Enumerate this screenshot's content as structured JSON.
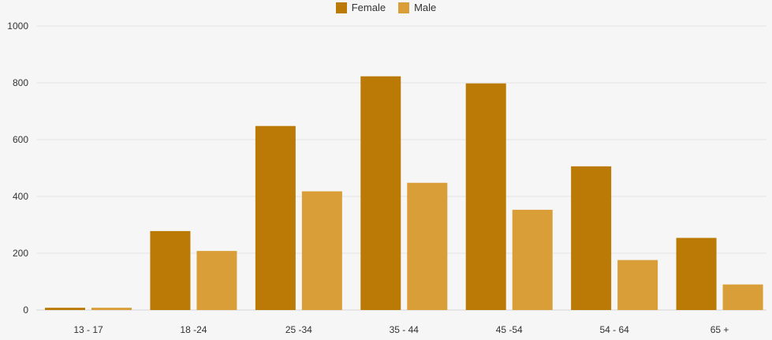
{
  "chart_data": {
    "type": "bar",
    "categories": [
      "13 - 17",
      "18 -24",
      "25 -34",
      "35 - 44",
      "45 -54",
      "54 - 64",
      "65 +"
    ],
    "series": [
      {
        "name": "Female",
        "color": "#bb7a06",
        "values": [
          8,
          278,
          648,
          823,
          798,
          506,
          254
        ]
      },
      {
        "name": "Male",
        "color": "#d99e37",
        "values": [
          8,
          208,
          418,
          448,
          353,
          176,
          90
        ]
      }
    ],
    "yticks": [
      0,
      200,
      400,
      600,
      800,
      1000
    ],
    "ylim": [
      0,
      1000
    ],
    "grid": true,
    "legend_position": "top-center"
  }
}
